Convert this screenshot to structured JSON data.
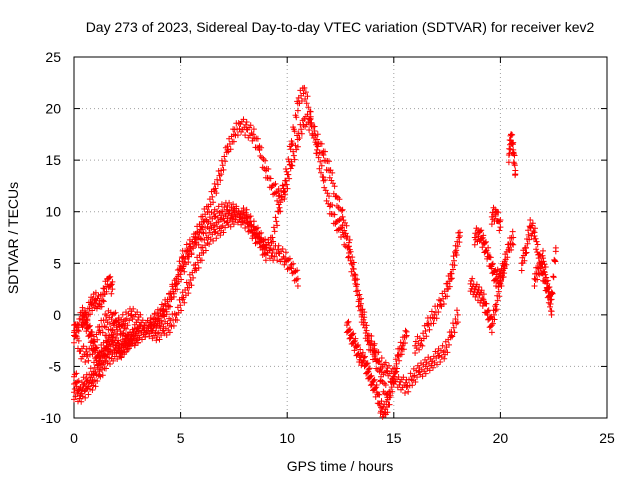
{
  "chart_data": {
    "type": "scatter",
    "title": "Day 273 of 2023, Sidereal Day-to-day VTEC variation (SDTVAR) for receiver kev2",
    "xlabel": "GPS time / hours",
    "ylabel": "SDTVAR / TECUs",
    "xlim": [
      0,
      25
    ],
    "ylim": [
      -10,
      25
    ],
    "xticks": [
      0,
      5,
      10,
      15,
      20,
      25
    ],
    "yticks": [
      -10,
      -5,
      0,
      5,
      10,
      15,
      20,
      25
    ],
    "xtick_labels": [
      "0",
      "5",
      "10",
      "15",
      "20",
      "25"
    ],
    "ytick_labels": [
      "-10",
      "-5",
      "0",
      "5",
      "10",
      "15",
      "20",
      "25"
    ],
    "grid": true,
    "legend": "none",
    "marker": "plus",
    "series": [
      {
        "name": "track-1",
        "color": "#ff0000",
        "x": [
          0.0,
          0.3,
          0.6,
          0.9,
          1.2,
          1.5,
          1.8,
          2.1,
          2.4,
          2.7,
          3.0,
          3.3,
          3.6,
          3.9,
          4.2,
          4.5,
          4.8,
          5.1,
          5.4,
          5.7,
          6.0,
          6.3,
          6.6,
          6.9,
          7.2,
          7.5,
          7.8,
          8.1,
          8.4,
          8.7,
          9.0,
          9.3,
          9.6,
          9.9,
          10.2,
          10.5,
          10.8,
          11.1,
          11.4,
          11.7,
          12.0,
          12.3,
          12.6,
          12.9,
          13.2,
          13.5,
          13.8,
          14.1,
          14.4,
          14.7,
          15.0,
          15.3,
          15.6,
          15.9,
          16.2,
          16.5,
          16.8,
          17.1,
          17.4,
          17.7,
          18.0
        ],
        "y": [
          -7.5,
          -7.8,
          -7.2,
          -6.5,
          -5.8,
          -4.5,
          -3.8,
          -3.5,
          -2.8,
          -2.5,
          -2.0,
          -1.5,
          -1.0,
          -0.3,
          0.5,
          1.5,
          3.0,
          4.5,
          6.0,
          7.5,
          9.0,
          10.5,
          12.0,
          14.0,
          16.0,
          17.5,
          18.5,
          18.0,
          17.5,
          16.0,
          14.0,
          12.5,
          11.5,
          12.0,
          14.5,
          17.0,
          19.0,
          18.5,
          17.0,
          15.5,
          14.0,
          11.5,
          9.5,
          7.0,
          3.5,
          0.5,
          -2.0,
          -3.5,
          -4.8,
          -5.5,
          -6.0,
          -6.5,
          -7.0,
          -6.0,
          -5.5,
          -5.0,
          -4.5,
          -4.0,
          -3.5,
          -2.0,
          0.0
        ]
      },
      {
        "name": "track-2",
        "color": "#ff0000",
        "x": [
          0.0,
          0.3,
          0.6,
          0.9,
          1.2,
          1.5,
          1.8,
          2.1,
          2.4,
          2.7,
          3.0,
          3.3,
          3.6,
          3.9,
          4.2,
          4.5,
          4.8,
          5.1,
          5.4,
          5.7,
          6.0,
          6.3,
          6.6,
          6.9,
          7.2,
          7.5,
          7.8,
          8.1,
          8.4,
          8.7,
          9.0,
          9.3,
          9.6,
          9.9,
          10.2,
          10.5,
          10.8,
          11.1,
          11.4,
          11.7,
          12.0,
          12.3,
          12.6,
          12.9,
          13.2,
          13.5,
          13.8,
          14.1,
          14.4,
          14.7
        ],
        "y": [
          -1.0,
          -3.5,
          -4.0,
          -3.0,
          -1.5,
          -0.5,
          0.0,
          -1.0,
          -2.0,
          -2.5,
          -2.0,
          -1.5,
          -1.0,
          -0.5,
          0.0,
          1.5,
          3.5,
          5.5,
          6.5,
          7.0,
          8.0,
          9.0,
          9.5,
          10.0,
          10.2,
          10.0,
          9.5,
          9.0,
          8.0,
          7.0,
          6.0,
          7.5,
          10.0,
          13.0,
          16.5,
          20.5,
          22.0,
          19.0,
          16.0,
          13.0,
          10.5,
          9.0,
          8.0,
          6.0,
          3.0,
          0.0,
          -2.5,
          -4.0,
          -6.0,
          -8.0
        ]
      },
      {
        "name": "track-3",
        "color": "#ff0000",
        "x": [
          0.0,
          0.3,
          0.6,
          0.9,
          1.2,
          1.5,
          1.8,
          2.1,
          2.4,
          2.7,
          3.0,
          3.3,
          3.6,
          3.9,
          4.2,
          4.5,
          4.8,
          5.1,
          5.4,
          5.7,
          6.0,
          6.3,
          6.6,
          6.9,
          7.2,
          7.5,
          7.8,
          8.1,
          8.4,
          8.7,
          9.0,
          9.3,
          9.6,
          9.9,
          10.2,
          10.5
        ],
        "y": [
          -6.0,
          -7.0,
          -6.5,
          -5.5,
          -4.0,
          -2.5,
          -1.5,
          -1.0,
          -0.5,
          0.0,
          -0.5,
          -1.0,
          -1.5,
          -1.8,
          -1.5,
          -1.0,
          0.0,
          1.5,
          3.0,
          4.5,
          6.0,
          7.5,
          8.0,
          8.5,
          9.0,
          9.5,
          9.8,
          9.5,
          8.5,
          7.5,
          6.5,
          6.0,
          6.0,
          5.5,
          4.5,
          3.5
        ]
      },
      {
        "name": "track-4",
        "color": "#ff0000",
        "x": [
          0.0,
          0.2,
          0.4,
          0.6,
          0.8,
          1.0,
          1.2,
          1.4,
          1.6,
          1.8,
          2.0,
          2.2,
          2.4,
          2.6,
          2.8,
          3.0
        ],
        "y": [
          -2.0,
          -1.0,
          0.0,
          -1.0,
          -2.0,
          -3.5,
          -4.5,
          -4.0,
          -3.0,
          -2.5,
          -3.0,
          -3.5,
          -3.0,
          -2.5,
          -2.0,
          -2.0
        ]
      },
      {
        "name": "track-5",
        "color": "#ff0000",
        "x": [
          0.4,
          0.6,
          0.8,
          1.0,
          1.2,
          1.4,
          1.6,
          1.8
        ],
        "y": [
          -0.5,
          0.0,
          1.0,
          1.5,
          1.0,
          2.0,
          3.5,
          2.5
        ]
      },
      {
        "name": "track-6",
        "color": "#ff0000",
        "x": [
          12.8,
          13.0,
          13.2,
          13.4,
          13.6,
          13.8,
          14.0,
          14.2,
          14.4,
          14.6,
          14.8,
          15.0,
          15.2,
          15.4,
          15.6
        ],
        "y": [
          -1.0,
          -2.0,
          -3.0,
          -4.0,
          -4.5,
          -5.5,
          -6.5,
          -7.5,
          -9.0,
          -9.5,
          -8.0,
          -6.0,
          -4.0,
          -3.0,
          -2.0
        ]
      },
      {
        "name": "track-7",
        "color": "#ff0000",
        "x": [
          16.0,
          16.3,
          16.6,
          16.9,
          17.2,
          17.5,
          17.7,
          17.9,
          18.1
        ],
        "y": [
          -3.0,
          -2.5,
          -1.0,
          0.0,
          1.0,
          2.5,
          4.0,
          6.0,
          8.0
        ]
      },
      {
        "name": "track-8",
        "color": "#ff0000",
        "x": [
          18.6,
          18.8,
          19.0,
          19.2,
          19.4,
          19.6,
          19.8,
          20.0,
          20.2,
          20.4,
          20.6
        ],
        "y": [
          3.0,
          2.5,
          2.0,
          1.5,
          0.0,
          -1.0,
          1.0,
          3.0,
          5.0,
          6.5,
          7.5
        ]
      },
      {
        "name": "track-9",
        "color": "#ff0000",
        "x": [
          18.8,
          19.0,
          19.2,
          19.4,
          19.6,
          19.8,
          20.0,
          20.2
        ],
        "y": [
          7.5,
          8.0,
          7.0,
          6.0,
          4.5,
          3.5,
          4.0,
          4.5
        ]
      },
      {
        "name": "track-10",
        "color": "#ff0000",
        "x": [
          19.6,
          19.8,
          20.0
        ],
        "y": [
          9.5,
          10.0,
          8.5
        ]
      },
      {
        "name": "track-11",
        "color": "#ff0000",
        "x": [
          20.4,
          20.5,
          20.6,
          20.7
        ],
        "y": [
          15.5,
          17.5,
          16.0,
          14.0
        ]
      },
      {
        "name": "track-12",
        "color": "#ff0000",
        "x": [
          21.0,
          21.2,
          21.4,
          21.6,
          21.8,
          22.0,
          22.2,
          22.4,
          22.6
        ],
        "y": [
          5.0,
          6.5,
          8.5,
          8.0,
          5.5,
          4.0,
          2.5,
          1.5,
          6.5
        ]
      },
      {
        "name": "track-13",
        "color": "#ff0000",
        "x": [
          21.6,
          21.8,
          22.0,
          22.2,
          22.4
        ],
        "y": [
          3.5,
          4.5,
          5.5,
          3.0,
          0.0
        ]
      }
    ]
  }
}
